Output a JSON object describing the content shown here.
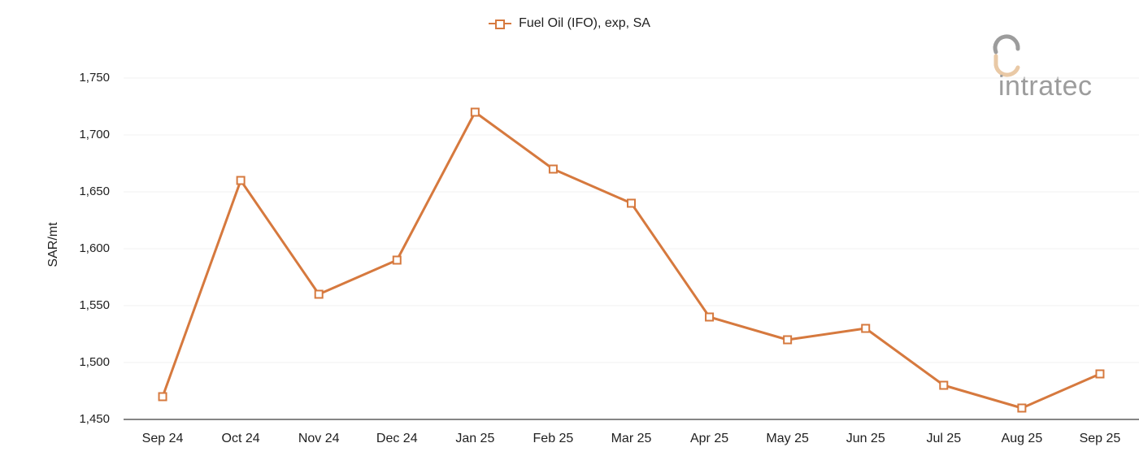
{
  "legend": {
    "label": "Fuel Oil (IFO), exp, SA"
  },
  "logo": {
    "text": "intratec"
  },
  "colors": {
    "series": "#d6793e",
    "grid_line": "#f2f2f2",
    "axis_line": "#858585",
    "text": "#1f1f1f",
    "logo_gray": "#9c9c9c",
    "logo_tan": "#e9c9a6",
    "marker_fill": "#ffffff"
  },
  "chart_data": {
    "type": "line",
    "title": "",
    "xlabel": "",
    "ylabel": "SAR/mt",
    "categories": [
      "Sep 24",
      "Oct 24",
      "Nov 24",
      "Dec 24",
      "Jan 25",
      "Feb 25",
      "Mar 25",
      "Apr 25",
      "May 25",
      "Jun 25",
      "Jul 25",
      "Aug 25",
      "Sep 25"
    ],
    "series": [
      {
        "name": "Fuel Oil (IFO), exp, SA",
        "values": [
          1470,
          1660,
          1560,
          1590,
          1720,
          1670,
          1640,
          1540,
          1520,
          1530,
          1480,
          1460,
          1490
        ]
      }
    ],
    "ylim": [
      1450,
      1750
    ],
    "y_tick_step": 50,
    "y_tick_labels": [
      "1,450",
      "1,500",
      "1,550",
      "1,600",
      "1,650",
      "1,700",
      "1,750"
    ],
    "grid": "horizontal",
    "legend_position": "top-center",
    "marker": "hollow-square"
  }
}
